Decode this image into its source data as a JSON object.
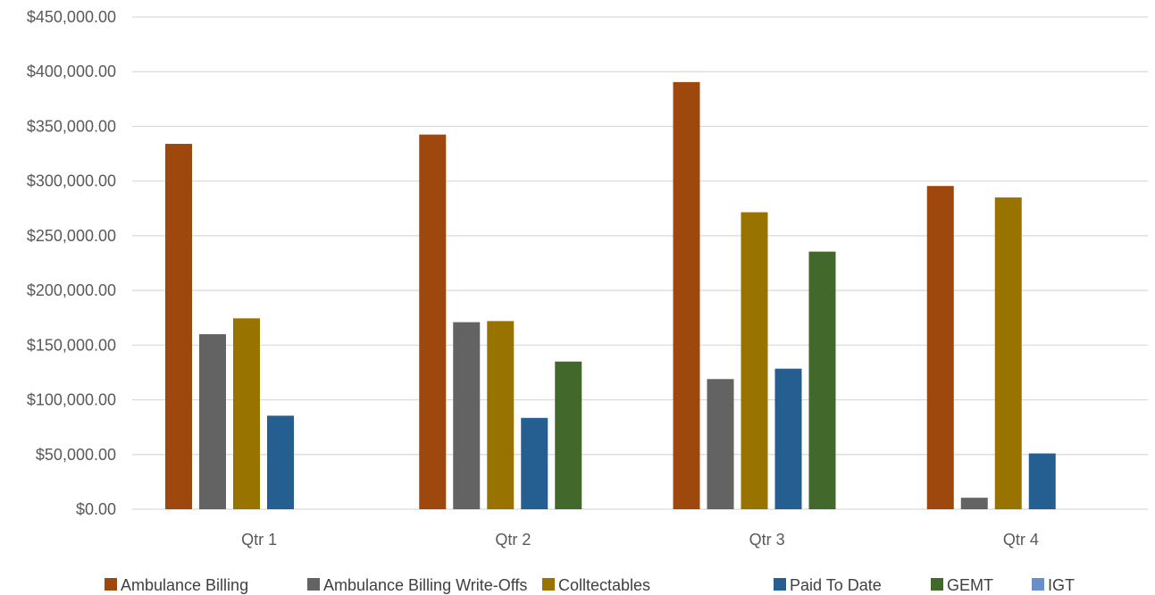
{
  "chart_data": {
    "type": "bar",
    "title": "",
    "xlabel": "",
    "ylabel": "",
    "ylim": [
      0,
      450000
    ],
    "yticks": [
      0,
      50000,
      100000,
      150000,
      200000,
      250000,
      300000,
      350000,
      400000,
      450000
    ],
    "ytick_labels": [
      "$0.00",
      "$50,000.00",
      "$100,000.00",
      "$150,000.00",
      "$200,000.00",
      "$250,000.00",
      "$300,000.00",
      "$350,000.00",
      "$400,000.00",
      "$450,000.00"
    ],
    "grid": true,
    "legend_position": "bottom",
    "categories": [
      "Qtr 1",
      "Qtr 2",
      "Qtr 3",
      "Qtr 4"
    ],
    "series": [
      {
        "name": "Ambulance Billing",
        "color": "#9E480E",
        "values": [
          334000,
          342500,
          390500,
          295500
        ]
      },
      {
        "name": "Ambulance Billing Write-Offs",
        "color": "#636363",
        "values": [
          160000,
          171000,
          119000,
          10500
        ]
      },
      {
        "name": "Colltectables",
        "color": "#997300",
        "values": [
          174500,
          172000,
          271500,
          285000
        ]
      },
      {
        "name": "Paid To Date",
        "color": "#255E91",
        "values": [
          85500,
          83500,
          128500,
          51000
        ]
      },
      {
        "name": "GEMT",
        "color": "#43682B",
        "values": [
          0,
          135000,
          235500,
          0
        ]
      },
      {
        "name": "IGT",
        "color": "#698ED0",
        "values": [
          0,
          0,
          0,
          0
        ]
      }
    ]
  }
}
